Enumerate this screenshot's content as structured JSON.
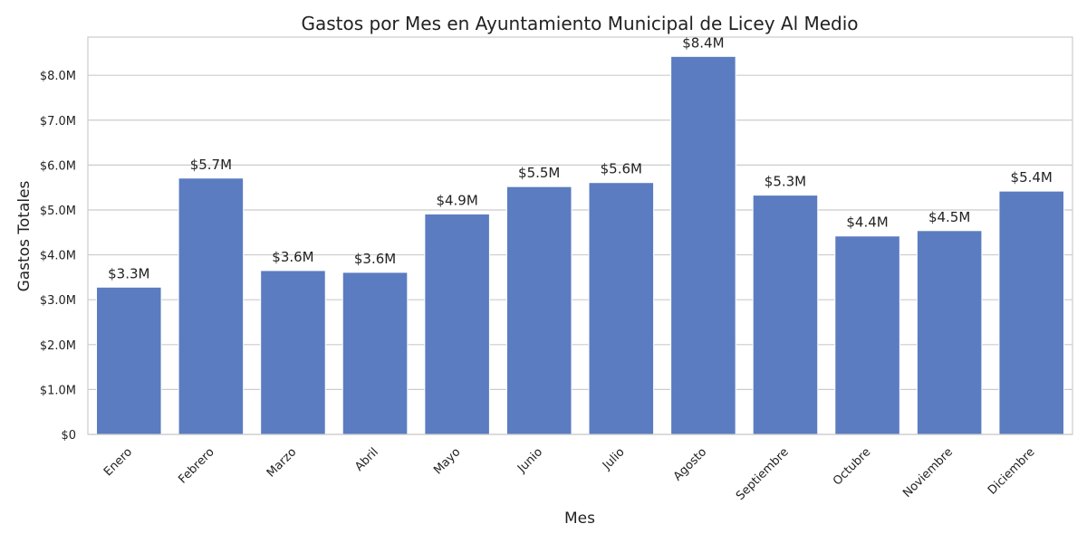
{
  "chart_data": {
    "type": "bar",
    "title": "Gastos por Mes en Ayuntamiento Municipal de Licey Al Medio",
    "xlabel": "Mes",
    "ylabel": "Gastos Totales",
    "categories": [
      "Enero",
      "Febrero",
      "Marzo",
      "Abril",
      "Mayo",
      "Junio",
      "Julio",
      "Agosto",
      "Septiembre",
      "Octubre",
      "Noviembre",
      "Diciembre"
    ],
    "values": [
      3.28,
      5.71,
      3.65,
      3.61,
      4.91,
      5.52,
      5.61,
      8.42,
      5.33,
      4.42,
      4.54,
      5.42
    ],
    "data_labels": [
      "$3.3M",
      "$5.7M",
      "$3.6M",
      "$3.6M",
      "$4.9M",
      "$5.5M",
      "$5.6M",
      "$8.4M",
      "$5.3M",
      "$4.4M",
      "$4.5M",
      "$5.4M"
    ],
    "value_unit": "millions",
    "ylim": [
      0,
      8.85
    ],
    "yticks": [
      0,
      1,
      2,
      3,
      4,
      5,
      6,
      7,
      8
    ],
    "ytick_labels": [
      "$0",
      "$1.0M",
      "$2.0M",
      "$3.0M",
      "$4.0M",
      "$5.0M",
      "$6.0M",
      "$7.0M",
      "$8.0M"
    ],
    "grid": "horizontal",
    "bar_color": "#5b7cc0",
    "legend": "none"
  }
}
